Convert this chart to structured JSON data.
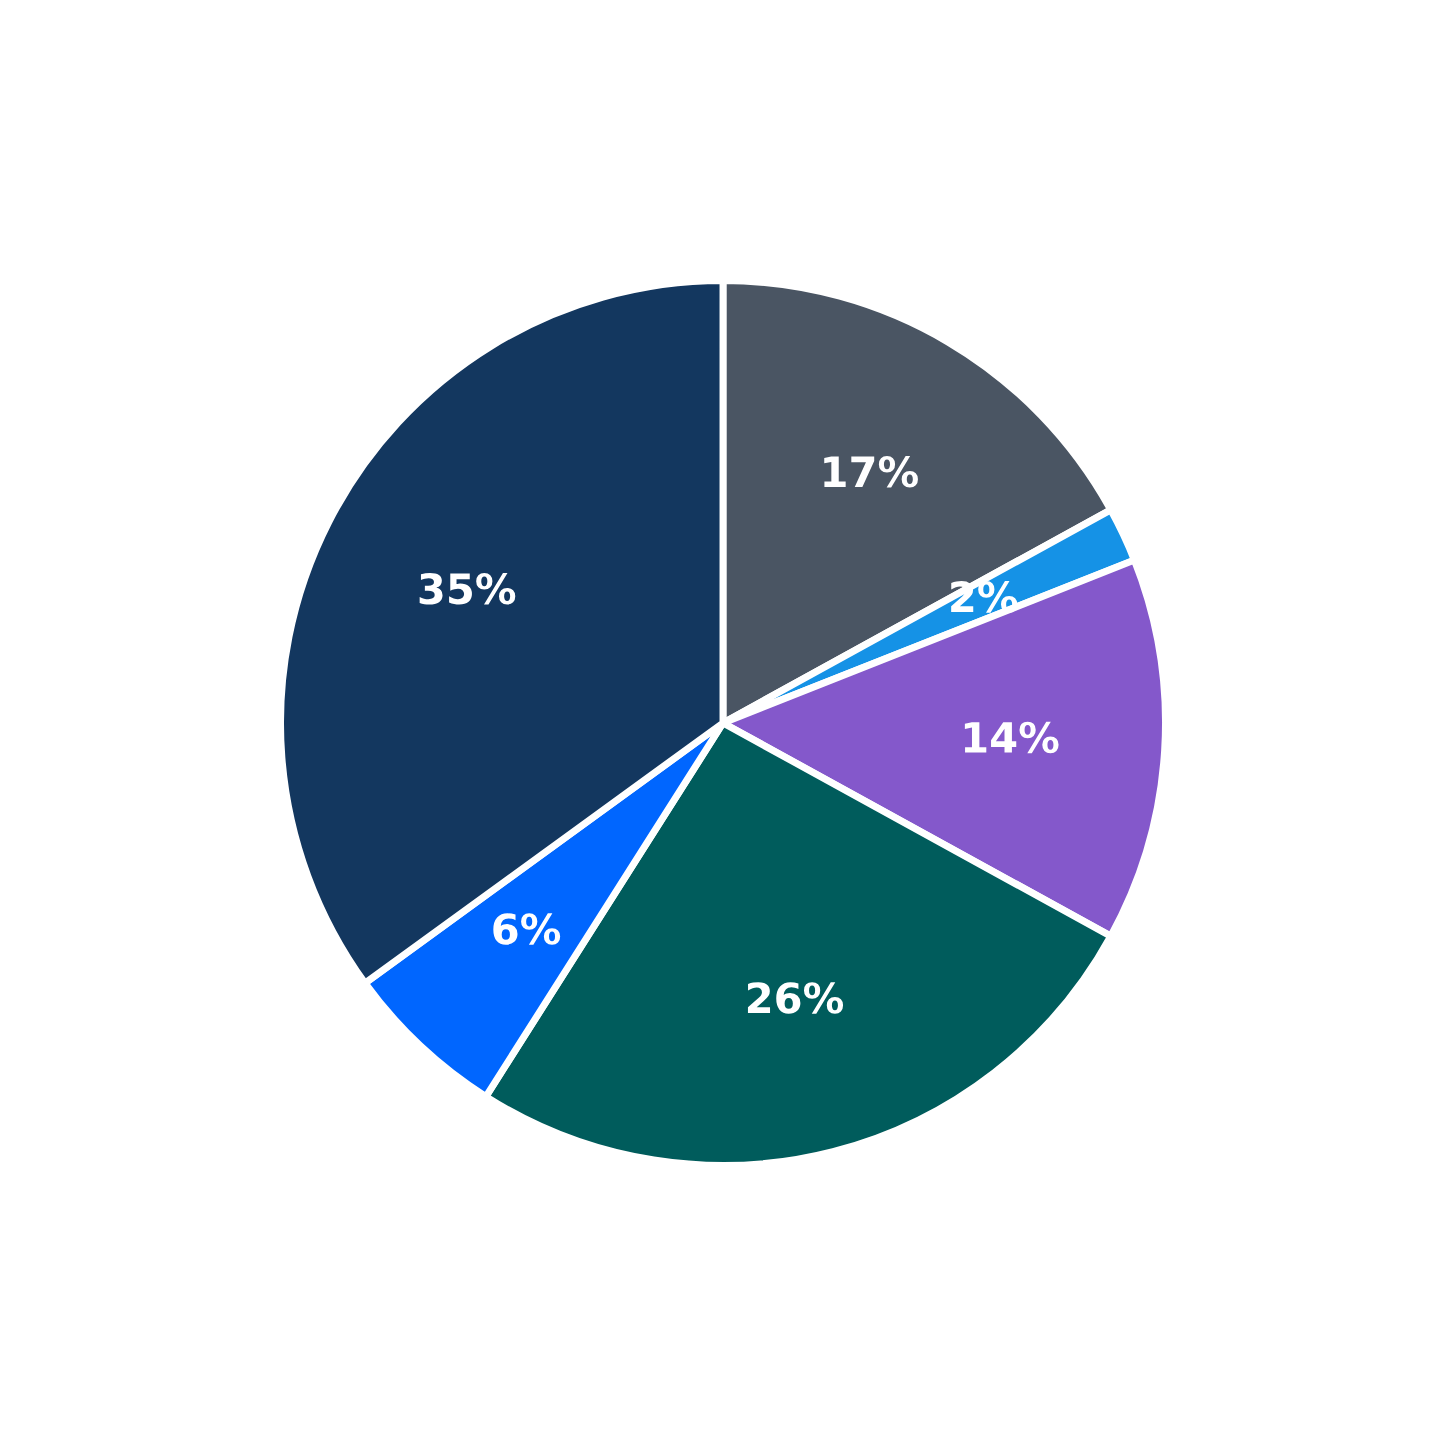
{
  "chart_data": {
    "type": "pie",
    "categories": [
      null,
      null,
      null,
      null,
      null,
      null
    ],
    "values": [
      17,
      2,
      14,
      26,
      6,
      35
    ],
    "colors": [
      "#4a5563",
      "#1592e6",
      "#8458cb",
      "#005c5c",
      "#0066ff",
      "#13375f"
    ],
    "value_labels": [
      "17%",
      "2%",
      "14%",
      "26%",
      "6%",
      "35%"
    ]
  }
}
